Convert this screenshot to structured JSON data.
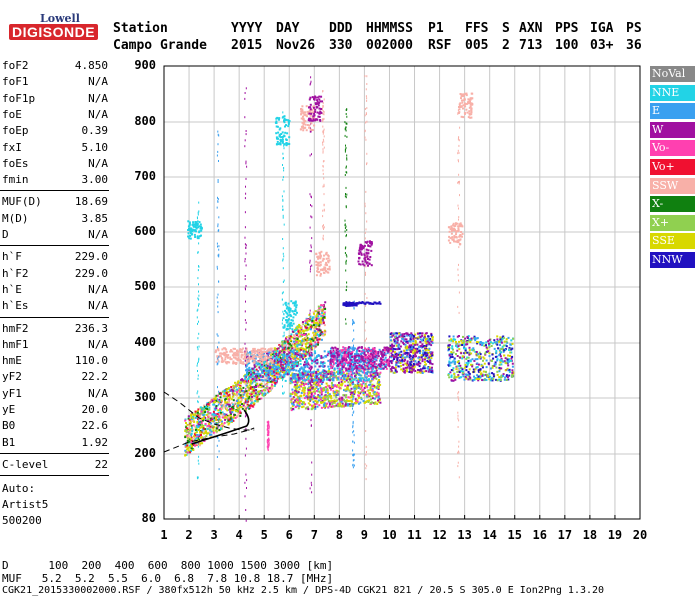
{
  "logo": {
    "top": "Lowell",
    "main": "DIGISONDE"
  },
  "header": {
    "line1": [
      "Station",
      "YYYY",
      "DAY",
      "DDD",
      "HHMMSS",
      "P1",
      "FFS",
      "S",
      "AXN",
      "PPS",
      "IGA",
      "PS"
    ],
    "line2": [
      "Campo Grande",
      "2015",
      "Nov26",
      "330",
      "002000",
      "RSF",
      "005",
      "2",
      "713",
      "100",
      "03+",
      "36"
    ]
  },
  "params": {
    "group1": [
      {
        "k": "foF2",
        "v": "4.850"
      },
      {
        "k": "foF1",
        "v": "N/A"
      },
      {
        "k": "foF1p",
        "v": "N/A"
      },
      {
        "k": "foE",
        "v": "N/A"
      },
      {
        "k": "foEp",
        "v": "0.39"
      },
      {
        "k": "fxI",
        "v": "5.10"
      },
      {
        "k": "foEs",
        "v": "N/A"
      },
      {
        "k": "fmin",
        "v": "3.00"
      }
    ],
    "group2": [
      {
        "k": "MUF(D)",
        "v": "18.69"
      },
      {
        "k": "M(D)",
        "v": "3.85"
      },
      {
        "k": "D",
        "v": "N/A"
      }
    ],
    "group3": [
      {
        "k": "h`F",
        "v": "229.0"
      },
      {
        "k": "h`F2",
        "v": "229.0"
      },
      {
        "k": "h`E",
        "v": "N/A"
      },
      {
        "k": "h`Es",
        "v": "N/A"
      }
    ],
    "group4": [
      {
        "k": "hmF2",
        "v": "236.3"
      },
      {
        "k": "hmF1",
        "v": "N/A"
      },
      {
        "k": "hmE",
        "v": "110.0"
      },
      {
        "k": "yF2",
        "v": "22.2"
      },
      {
        "k": "yF1",
        "v": "N/A"
      },
      {
        "k": "yE",
        "v": "20.0"
      },
      {
        "k": "B0",
        "v": "22.6"
      },
      {
        "k": "B1",
        "v": "1.92"
      }
    ],
    "group5": [
      {
        "k": "C-level",
        "v": "22"
      }
    ],
    "auto": [
      "Auto:",
      "Artist5",
      "500200"
    ]
  },
  "legend": [
    {
      "label": "NoVal",
      "color": "#888888"
    },
    {
      "label": "NNE",
      "color": "#22d3e6"
    },
    {
      "label": "E",
      "color": "#3aa0f0"
    },
    {
      "label": "W",
      "color": "#a010a0"
    },
    {
      "label": "Vo-",
      "color": "#ff40b0"
    },
    {
      "label": "Vo+",
      "color": "#f01030"
    },
    {
      "label": "SSW",
      "color": "#f8b0a8"
    },
    {
      "label": "X-",
      "color": "#108010"
    },
    {
      "label": "X+",
      "color": "#90d050"
    },
    {
      "label": "SSE",
      "color": "#d8d800"
    },
    {
      "label": "NNW",
      "color": "#2010c0"
    }
  ],
  "axes": {
    "y_ticks": [
      "900",
      "800",
      "700",
      "600",
      "500",
      "400",
      "300",
      "200",
      "80"
    ],
    "x_ticks": [
      "1",
      "2",
      "3",
      "4",
      "5",
      "6",
      "7",
      "8",
      "9",
      "10",
      "11",
      "12",
      "13",
      "14",
      "15",
      "16",
      "17",
      "18",
      "19",
      "20"
    ]
  },
  "bottom": {
    "line1": "D      100  200  400  600  800 1000 1500 3000 [km]",
    "line2": "MUF   5.2  5.2  5.5  6.0  6.8  7.8 10.8 18.7 [MHz]",
    "line3": "CGK21_2015330002000.RSF / 380fx512h 50 kHz 2.5 km / DPS-4D CGK21 821 / 20.5 S 305.0 E Ion2Png 1.3.20"
  }
}
